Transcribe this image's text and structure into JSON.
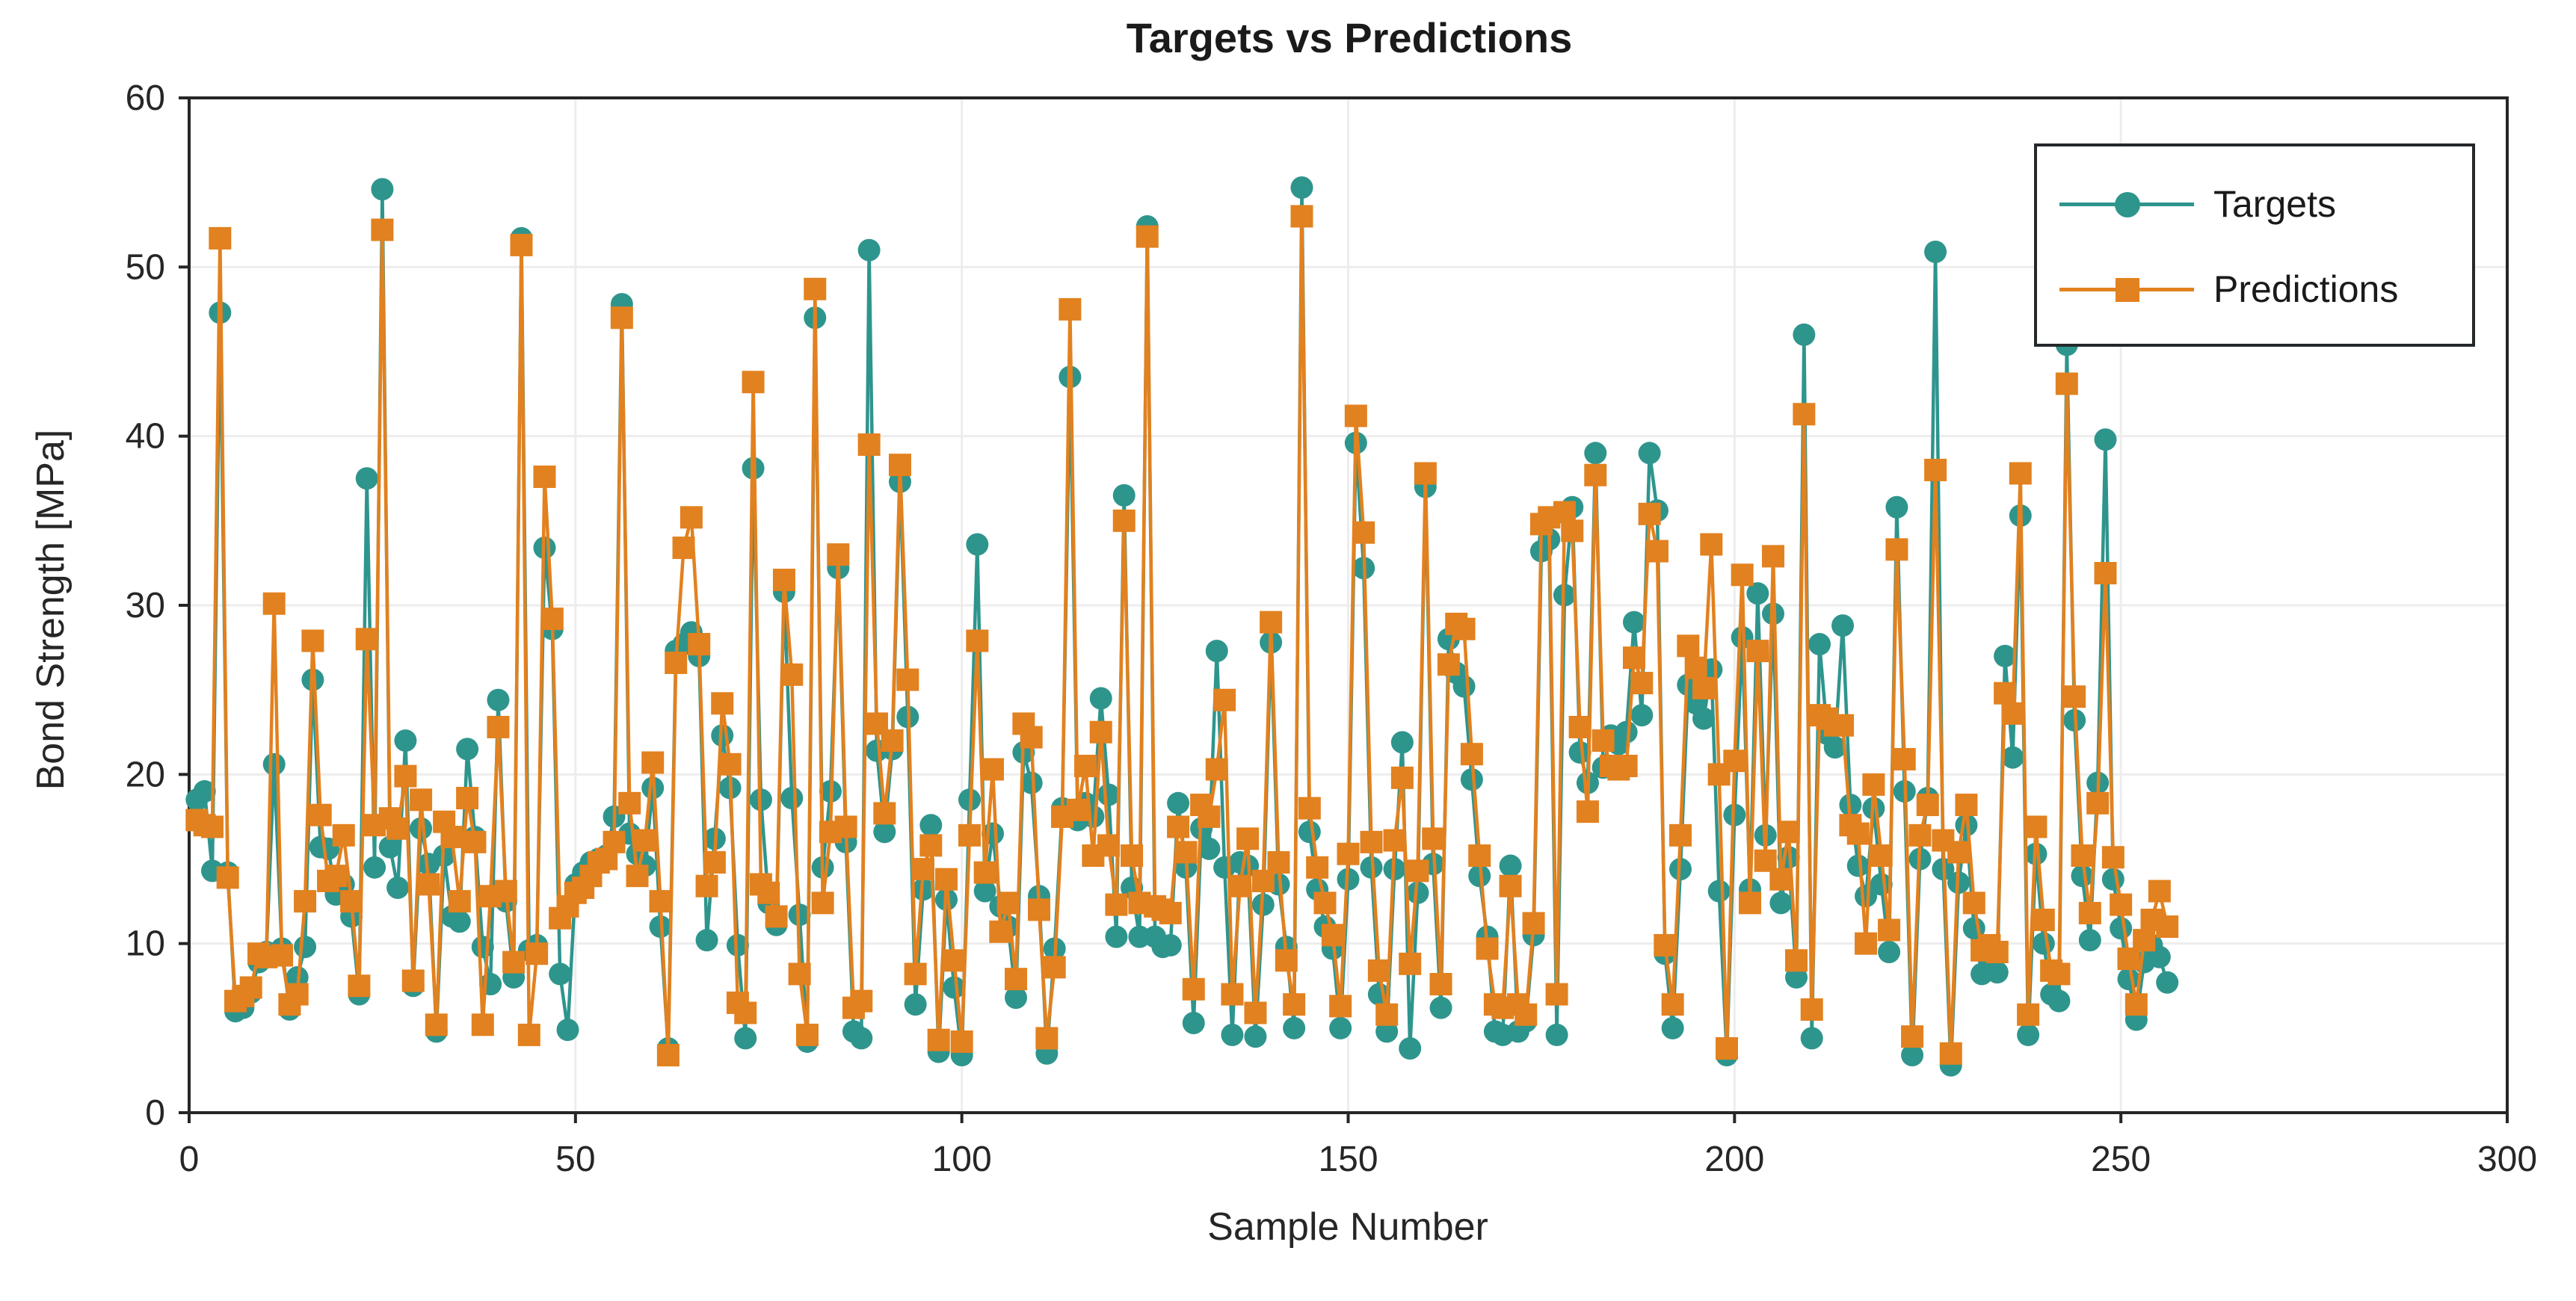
{
  "title": "Targets vs Predictions",
  "axes": {
    "xlabel": "Sample Number",
    "ylabel": "Bond Strength [MPa]",
    "xlim": [
      0,
      300
    ],
    "ylim": [
      0,
      60
    ],
    "xticks": [
      "0",
      "50",
      "100",
      "150",
      "200",
      "250",
      "300"
    ],
    "yticks": [
      "0",
      "10",
      "20",
      "30",
      "40",
      "50",
      "60"
    ]
  },
  "colors": {
    "targets": "#2E958D",
    "predictions": "#E2811F",
    "grid": "#EDEDED",
    "axis": "#262626",
    "tick_text": "#262626",
    "background": "#FFFFFF"
  },
  "legend": {
    "position": "top-right",
    "items": [
      {
        "label": "Targets",
        "marker": "circle-icon",
        "color": "#2E958D"
      },
      {
        "label": "Predictions",
        "marker": "square-icon",
        "color": "#E2811F"
      }
    ]
  },
  "chart_data": {
    "type": "line",
    "title": "Targets vs Predictions",
    "xlabel": "Sample Number",
    "ylabel": "Bond Strength [MPa]",
    "xlim": [
      0,
      300
    ],
    "ylim": [
      0,
      60
    ],
    "grid": true,
    "legend_position": "top-right",
    "x_description": "sample numbers 1..256 (implicit: index+1)",
    "series": [
      {
        "name": "Targets",
        "marker": "circle",
        "color": "#2E958D",
        "values": [
          18.5,
          19.0,
          14.3,
          47.3,
          14.2,
          6.0,
          6.2,
          7.1,
          8.9,
          9.5,
          20.6,
          9.7,
          6.1,
          8.0,
          9.8,
          25.6,
          15.7,
          15.6,
          12.9,
          13.5,
          11.6,
          7.0,
          37.5,
          14.5,
          54.6,
          15.7,
          13.3,
          22.0,
          7.5,
          16.8,
          14.7,
          4.8,
          15.2,
          11.6,
          11.3,
          21.5,
          16.3,
          9.8,
          7.6,
          24.4,
          12.5,
          8.0,
          51.7,
          9.6,
          9.9,
          33.4,
          28.6,
          8.2,
          4.9,
          13.5,
          14.2,
          14.8,
          15.0,
          15.2,
          17.5,
          47.8,
          16.5,
          15.3,
          14.6,
          19.2,
          11.0,
          3.8,
          27.3,
          27.7,
          28.4,
          27.0,
          10.2,
          16.2,
          22.3,
          19.2,
          9.9,
          4.4,
          38.1,
          18.5,
          12.4,
          11.1,
          30.8,
          18.6,
          11.7,
          4.2,
          47.0,
          14.5,
          19.0,
          32.2,
          16.0,
          4.8,
          4.4,
          51.0,
          21.4,
          16.6,
          21.5,
          37.3,
          23.4,
          6.4,
          13.2,
          17.0,
          3.6,
          12.6,
          7.4,
          3.4,
          18.5,
          33.6,
          13.1,
          16.5,
          12.2,
          11.0,
          6.8,
          21.3,
          19.5,
          12.8,
          3.5,
          9.7,
          18.0,
          43.5,
          17.3,
          18.3,
          17.5,
          24.5,
          18.8,
          10.4,
          36.5,
          13.3,
          10.4,
          52.4,
          10.4,
          9.8,
          9.9,
          18.3,
          14.5,
          5.3,
          16.8,
          15.6,
          27.3,
          14.5,
          4.6,
          14.8,
          14.6,
          4.5,
          12.3,
          27.8,
          13.5,
          9.8,
          5.0,
          54.7,
          16.6,
          13.2,
          11.0,
          9.7,
          5.0,
          13.8,
          39.6,
          32.2,
          14.5,
          7.0,
          4.8,
          14.4,
          21.9,
          3.8,
          13.0,
          37.0,
          14.7,
          6.2,
          28.0,
          26.0,
          25.2,
          19.7,
          14.0,
          10.4,
          4.8,
          4.6,
          14.6,
          4.8,
          5.4,
          10.5,
          33.2,
          33.9,
          4.6,
          30.6,
          35.8,
          21.3,
          19.5,
          39.0,
          20.4,
          22.3,
          21.8,
          22.5,
          29.0,
          23.5,
          39.0,
          35.6,
          9.4,
          5.0,
          14.4,
          25.3,
          24.2,
          23.3,
          26.2,
          13.1,
          3.4,
          17.6,
          28.1,
          13.2,
          30.7,
          16.4,
          29.5,
          12.4,
          15.1,
          8.0,
          46.0,
          4.4,
          27.7,
          22.4,
          21.6,
          28.8,
          18.2,
          14.6,
          12.8,
          18.0,
          13.5,
          9.5,
          35.8,
          19.0,
          3.4,
          15.0,
          18.6,
          50.9,
          14.4,
          2.8,
          13.6,
          17.0,
          10.9,
          8.2,
          8.6,
          8.3,
          27.0,
          21.0,
          35.3,
          4.6,
          15.3,
          10.0,
          7.0,
          6.6,
          45.4,
          23.2,
          14.0,
          10.2,
          19.5,
          39.8,
          13.8,
          10.9,
          7.9,
          5.5,
          8.9,
          9.9,
          9.2,
          7.7
        ]
      },
      {
        "name": "Predictions",
        "marker": "square",
        "color": "#E2811F",
        "values": [
          17.3,
          17.0,
          16.9,
          51.7,
          13.9,
          6.6,
          6.9,
          7.4,
          9.4,
          9.2,
          30.1,
          9.3,
          6.4,
          7.0,
          12.5,
          27.9,
          17.6,
          13.7,
          14.0,
          16.4,
          12.5,
          7.5,
          28.0,
          17.0,
          52.2,
          17.4,
          16.8,
          19.9,
          7.8,
          18.5,
          13.5,
          5.2,
          17.2,
          16.3,
          12.5,
          18.6,
          16.0,
          5.2,
          12.8,
          22.8,
          13.1,
          8.9,
          51.3,
          4.6,
          9.4,
          37.6,
          29.2,
          11.5,
          12.2,
          13.0,
          13.3,
          14.0,
          14.8,
          15.0,
          16.0,
          47.0,
          18.3,
          14.0,
          16.1,
          20.7,
          12.5,
          3.4,
          26.6,
          33.4,
          35.2,
          27.7,
          13.4,
          14.8,
          24.2,
          20.6,
          6.5,
          5.9,
          43.2,
          13.5,
          13.0,
          11.6,
          31.5,
          25.9,
          8.2,
          4.6,
          48.7,
          12.4,
          16.6,
          33.0,
          16.9,
          6.2,
          6.6,
          39.5,
          23.0,
          17.7,
          22.0,
          38.3,
          25.6,
          8.2,
          14.4,
          15.8,
          4.3,
          13.8,
          9.0,
          4.2,
          16.4,
          27.9,
          14.2,
          20.3,
          10.7,
          12.4,
          7.9,
          23.0,
          22.2,
          12.0,
          4.4,
          8.6,
          17.5,
          47.5,
          17.9,
          20.5,
          15.2,
          22.5,
          15.8,
          12.3,
          35.0,
          15.2,
          12.4,
          51.8,
          12.2,
          12.0,
          11.8,
          16.9,
          15.4,
          7.3,
          18.2,
          17.5,
          20.3,
          24.4,
          7.0,
          13.4,
          16.2,
          5.9,
          13.7,
          29.0,
          14.8,
          9.0,
          6.4,
          53.0,
          18.0,
          14.5,
          12.4,
          10.5,
          6.3,
          15.3,
          41.2,
          34.3,
          16.0,
          8.4,
          5.8,
          16.1,
          19.8,
          8.8,
          14.3,
          37.8,
          16.2,
          7.6,
          26.5,
          28.9,
          28.6,
          21.2,
          15.2,
          9.7,
          6.4,
          6.2,
          13.4,
          6.4,
          5.8,
          11.2,
          34.8,
          35.2,
          7.0,
          35.5,
          34.4,
          22.8,
          17.8,
          37.7,
          22.0,
          20.5,
          20.3,
          20.5,
          26.9,
          25.4,
          35.4,
          33.2,
          9.9,
          6.4,
          16.4,
          27.6,
          26.3,
          25.1,
          33.6,
          20.0,
          3.8,
          20.8,
          31.8,
          12.4,
          27.3,
          14.9,
          32.9,
          13.8,
          16.6,
          9.0,
          41.3,
          6.1,
          23.5,
          23.3,
          22.9,
          22.9,
          17.0,
          16.5,
          10.0,
          19.4,
          15.2,
          10.8,
          33.3,
          20.9,
          4.5,
          16.4,
          18.2,
          38.0,
          16.1,
          3.5,
          15.4,
          18.2,
          12.4,
          9.6,
          9.9,
          9.5,
          24.8,
          23.6,
          37.8,
          5.8,
          16.9,
          11.4,
          8.4,
          8.2,
          43.1,
          24.6,
          15.2,
          11.8,
          18.3,
          31.9,
          15.1,
          12.3,
          9.1,
          6.4,
          10.2,
          11.4,
          13.1,
          11.0
        ]
      }
    ]
  },
  "plot_geometry_note": "plot box left 253, right 3354, top 131, bottom 1489 (pixels)"
}
